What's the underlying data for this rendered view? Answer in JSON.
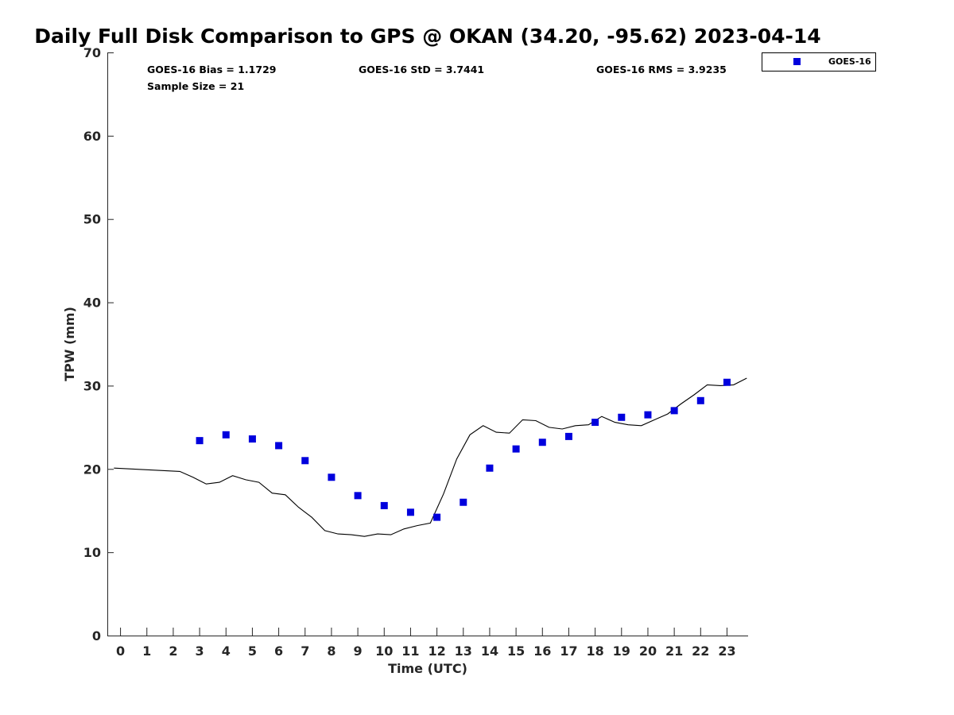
{
  "chart_data": {
    "type": "scatter",
    "title": "Daily Full Disk Comparison to GPS @ OKAN (34.20, -95.62) 2023-04-14",
    "xlabel": "Time (UTC)",
    "ylabel": "TPW (mm)",
    "xlim": [
      -0.5,
      23.8
    ],
    "ylim": [
      0,
      70
    ],
    "x_ticks": [
      "0",
      "1",
      "2",
      "3",
      "4",
      "5",
      "6",
      "7",
      "8",
      "9",
      "10",
      "11",
      "12",
      "13",
      "14",
      "15",
      "16",
      "17",
      "18",
      "19",
      "20",
      "21",
      "22",
      "23"
    ],
    "y_ticks": [
      "0",
      "10",
      "20",
      "30",
      "40",
      "50",
      "60",
      "70"
    ],
    "grid": false,
    "legend_position": "top-right (outside plot)",
    "stats": {
      "bias": "GOES-16 Bias = 1.1729",
      "std": "GOES-16 StD = 3.7441",
      "rms": "GOES-16 RMS = 3.9235",
      "sample": "Sample Size = 21"
    },
    "series": [
      {
        "name": "GOES-16",
        "kind": "scatter",
        "color": "#0000dd",
        "marker": "square",
        "x": [
          3,
          4,
          5,
          6,
          7,
          8,
          9,
          10,
          11,
          12,
          13,
          14,
          15,
          16,
          17,
          18,
          19,
          20,
          21,
          22,
          23
        ],
        "y": [
          23.4,
          24.1,
          23.6,
          22.8,
          21.0,
          19.0,
          16.8,
          15.6,
          14.8,
          14.2,
          16.0,
          20.1,
          22.4,
          23.2,
          23.9,
          25.6,
          26.2,
          26.5,
          27.0,
          28.2,
          30.4
        ]
      },
      {
        "kind": "line",
        "color": "#000000",
        "x": [
          -0.25,
          2.25,
          2.75,
          3.25,
          3.75,
          4.25,
          4.75,
          5.25,
          5.75,
          6.25,
          6.75,
          7.25,
          7.75,
          8.25,
          8.75,
          9.25,
          9.75,
          10.25,
          10.75,
          11.25,
          11.75,
          12.25,
          12.75,
          13.25,
          13.75,
          14.25,
          14.75,
          15.25,
          15.75,
          16.25,
          16.75,
          17.25,
          17.75,
          18.25,
          18.75,
          19.25,
          19.75,
          20.25,
          20.75,
          21.25,
          21.75,
          22.25,
          22.75,
          23.25,
          23.75
        ],
        "y": [
          20.1,
          19.7,
          19.0,
          18.2,
          18.4,
          19.2,
          18.7,
          18.4,
          17.1,
          16.9,
          15.4,
          14.2,
          12.6,
          12.2,
          12.1,
          11.9,
          12.2,
          12.1,
          12.8,
          13.2,
          13.5,
          17.0,
          21.2,
          24.1,
          25.2,
          24.4,
          24.3,
          25.9,
          25.8,
          25.0,
          24.8,
          25.2,
          25.3,
          26.3,
          25.6,
          25.3,
          25.2,
          25.9,
          26.6,
          27.8,
          28.9,
          30.1,
          30.0,
          30.1,
          30.9
        ]
      }
    ]
  }
}
